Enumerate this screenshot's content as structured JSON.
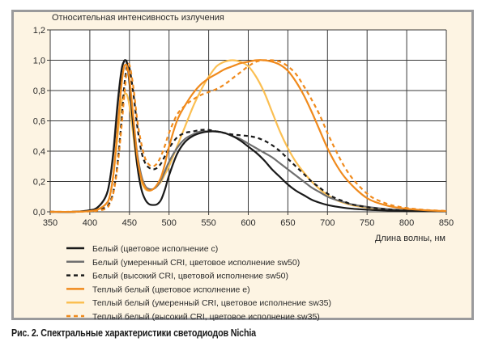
{
  "caption": "Рис. 2. Спектральные характеристики светодиодов Nichia",
  "chart_data": {
    "type": "line",
    "title": "",
    "ylabel": "Относительная интенсивность излучения",
    "xlabel": "Длина волны, нм",
    "xlim": [
      350,
      850
    ],
    "ylim": [
      0,
      1.2
    ],
    "x_ticks": [
      350,
      400,
      450,
      500,
      550,
      600,
      650,
      700,
      750,
      800,
      850
    ],
    "x_tick_labels": [
      "350",
      "400",
      "450",
      "500",
      "550",
      "600",
      "650",
      "700",
      "750",
      "800",
      "850"
    ],
    "y_ticks": [
      0,
      0.2,
      0.4,
      0.6,
      0.8,
      1.0,
      1.2
    ],
    "y_tick_labels": [
      "0,0",
      "0,2",
      "0,4",
      "0,6",
      "0,8",
      "1,0",
      "1,2"
    ],
    "grid": true,
    "legend_position": "bottom-left",
    "x": [
      350,
      380,
      400,
      410,
      420,
      425,
      430,
      435,
      440,
      443,
      445,
      447,
      450,
      455,
      460,
      465,
      470,
      475,
      480,
      485,
      490,
      495,
      500,
      510,
      520,
      530,
      540,
      550,
      560,
      570,
      580,
      590,
      600,
      610,
      620,
      630,
      640,
      650,
      660,
      670,
      680,
      690,
      700,
      710,
      720,
      730,
      740,
      750,
      760,
      780,
      800,
      825,
      850
    ],
    "series": [
      {
        "name": "Белый (цветовое исполнение с)",
        "color": "#1a1a1a",
        "dash": "solid",
        "values": [
          0.0,
          0.0,
          0.01,
          0.03,
          0.1,
          0.2,
          0.4,
          0.7,
          0.93,
          0.99,
          1.0,
          0.98,
          0.85,
          0.55,
          0.3,
          0.15,
          0.08,
          0.05,
          0.045,
          0.05,
          0.08,
          0.15,
          0.24,
          0.38,
          0.46,
          0.5,
          0.52,
          0.53,
          0.53,
          0.52,
          0.5,
          0.47,
          0.43,
          0.39,
          0.34,
          0.28,
          0.23,
          0.18,
          0.14,
          0.11,
          0.08,
          0.06,
          0.045,
          0.035,
          0.027,
          0.021,
          0.017,
          0.014,
          0.011,
          0.008,
          0.006,
          0.004,
          0.003
        ]
      },
      {
        "name": "Белый (умеренный CRI, цветовое исполнение sw50)",
        "color": "#6f6f6f",
        "dash": "solid",
        "values": [
          0.0,
          0.0,
          0.01,
          0.03,
          0.1,
          0.2,
          0.42,
          0.72,
          0.94,
          0.99,
          1.0,
          0.97,
          0.86,
          0.6,
          0.38,
          0.24,
          0.17,
          0.15,
          0.15,
          0.17,
          0.21,
          0.27,
          0.33,
          0.42,
          0.48,
          0.51,
          0.53,
          0.53,
          0.53,
          0.52,
          0.5,
          0.48,
          0.45,
          0.42,
          0.39,
          0.36,
          0.32,
          0.28,
          0.24,
          0.2,
          0.16,
          0.13,
          0.1,
          0.08,
          0.065,
          0.05,
          0.04,
          0.033,
          0.026,
          0.016,
          0.01,
          0.006,
          0.004
        ]
      },
      {
        "name": "Белый (высокий CRI, цветовой исполнение sw50)",
        "color": "#1a1a1a",
        "dash": "dashed",
        "values": [
          0.0,
          0.0,
          0.005,
          0.01,
          0.03,
          0.06,
          0.14,
          0.32,
          0.6,
          0.8,
          0.9,
          0.96,
          0.95,
          0.78,
          0.56,
          0.4,
          0.32,
          0.29,
          0.28,
          0.29,
          0.32,
          0.37,
          0.42,
          0.49,
          0.52,
          0.53,
          0.54,
          0.54,
          0.53,
          0.52,
          0.51,
          0.505,
          0.5,
          0.49,
          0.47,
          0.44,
          0.4,
          0.35,
          0.3,
          0.25,
          0.2,
          0.16,
          0.12,
          0.09,
          0.07,
          0.05,
          0.04,
          0.03,
          0.024,
          0.014,
          0.009,
          0.005,
          0.003
        ]
      },
      {
        "name": "Теплый белый (цветовое исполнение е)",
        "color": "#f08a1c",
        "dash": "solid",
        "values": [
          0.0,
          0.0,
          0.005,
          0.015,
          0.05,
          0.1,
          0.26,
          0.55,
          0.84,
          0.95,
          0.97,
          0.96,
          0.88,
          0.62,
          0.36,
          0.22,
          0.16,
          0.14,
          0.15,
          0.18,
          0.23,
          0.32,
          0.43,
          0.6,
          0.7,
          0.78,
          0.84,
          0.88,
          0.91,
          0.94,
          0.96,
          0.98,
          0.99,
          1.0,
          1.0,
          0.99,
          0.97,
          0.93,
          0.86,
          0.77,
          0.66,
          0.54,
          0.42,
          0.32,
          0.24,
          0.18,
          0.13,
          0.09,
          0.065,
          0.035,
          0.02,
          0.01,
          0.005
        ]
      },
      {
        "name": "Теплый белый (умеренный CRI, цветовое исполнение sw35)",
        "color": "#fbbf52",
        "dash": "solid",
        "values": [
          0.0,
          0.0,
          0.005,
          0.015,
          0.05,
          0.1,
          0.25,
          0.5,
          0.72,
          0.77,
          0.78,
          0.77,
          0.7,
          0.5,
          0.3,
          0.2,
          0.15,
          0.14,
          0.15,
          0.17,
          0.2,
          0.25,
          0.3,
          0.43,
          0.56,
          0.69,
          0.8,
          0.89,
          0.96,
          0.99,
          1.0,
          0.99,
          0.96,
          0.89,
          0.79,
          0.66,
          0.53,
          0.42,
          0.33,
          0.26,
          0.2,
          0.15,
          0.11,
          0.08,
          0.06,
          0.045,
          0.035,
          0.028,
          0.022,
          0.015,
          0.01,
          0.006,
          0.004
        ]
      },
      {
        "name": "Теплый белый (высокий CRI, цветовое исполнение sw35)",
        "color": "#f08a1c",
        "dash": "dashed",
        "values": [
          0.0,
          0.0,
          0.003,
          0.008,
          0.02,
          0.05,
          0.13,
          0.3,
          0.56,
          0.74,
          0.85,
          0.94,
          0.97,
          0.82,
          0.6,
          0.45,
          0.35,
          0.31,
          0.3,
          0.32,
          0.37,
          0.44,
          0.52,
          0.64,
          0.7,
          0.74,
          0.77,
          0.79,
          0.81,
          0.84,
          0.88,
          0.92,
          0.96,
          0.99,
          1.0,
          1.0,
          0.99,
          0.96,
          0.91,
          0.83,
          0.74,
          0.64,
          0.52,
          0.41,
          0.31,
          0.23,
          0.17,
          0.12,
          0.085,
          0.045,
          0.025,
          0.012,
          0.006
        ]
      }
    ]
  }
}
